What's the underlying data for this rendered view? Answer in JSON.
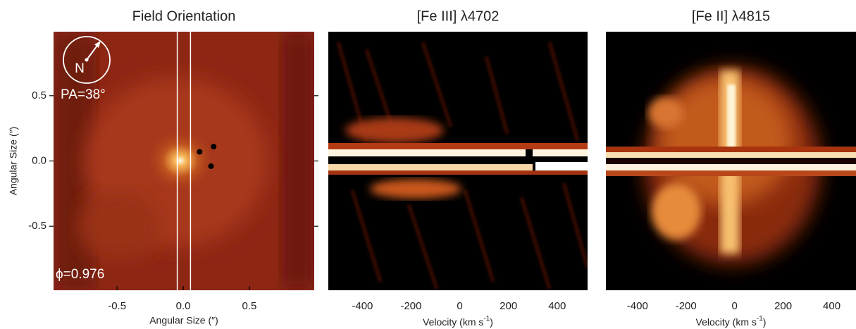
{
  "chart_data": [
    {
      "type": "image",
      "title": "Field Orientation",
      "xlabel": "Angular Size (″)",
      "ylabel": "Angular Size (″)",
      "xlim": [
        -0.98,
        0.99
      ],
      "ylim": [
        -0.99,
        0.99
      ],
      "xticks": [
        -0.5,
        {
          "value": 0,
          "label": "0.0"
        },
        0.5
      ],
      "yticks": [
        -0.5,
        {
          "value": 0,
          "label": "0.0"
        },
        0.5
      ],
      "slit": [
        -0.045,
        0.055
      ],
      "points": {
        "x": [
          0.124,
          0.23,
          0.21
        ],
        "y": [
          0.07,
          0.11,
          -0.04
        ],
        "color": "#000000"
      },
      "annotations": [
        "N",
        "PA=38°",
        "ϕ=0.976"
      ]
    },
    {
      "type": "image",
      "title": "[Fe III] λ4702",
      "xlabel": [
        "Velocity (km s",
        "-1",
        ")"
      ],
      "xlim": [
        -540,
        525
      ],
      "xticks": [
        -400,
        -200,
        0,
        200,
        400
      ]
    },
    {
      "type": "image",
      "title": "[Fe II] λ4815",
      "xlabel": [
        "Velocity (km s",
        "-1",
        ")"
      ],
      "xlim": [
        -530,
        500
      ],
      "xticks": [
        -400,
        -200,
        0,
        200,
        400
      ]
    }
  ]
}
